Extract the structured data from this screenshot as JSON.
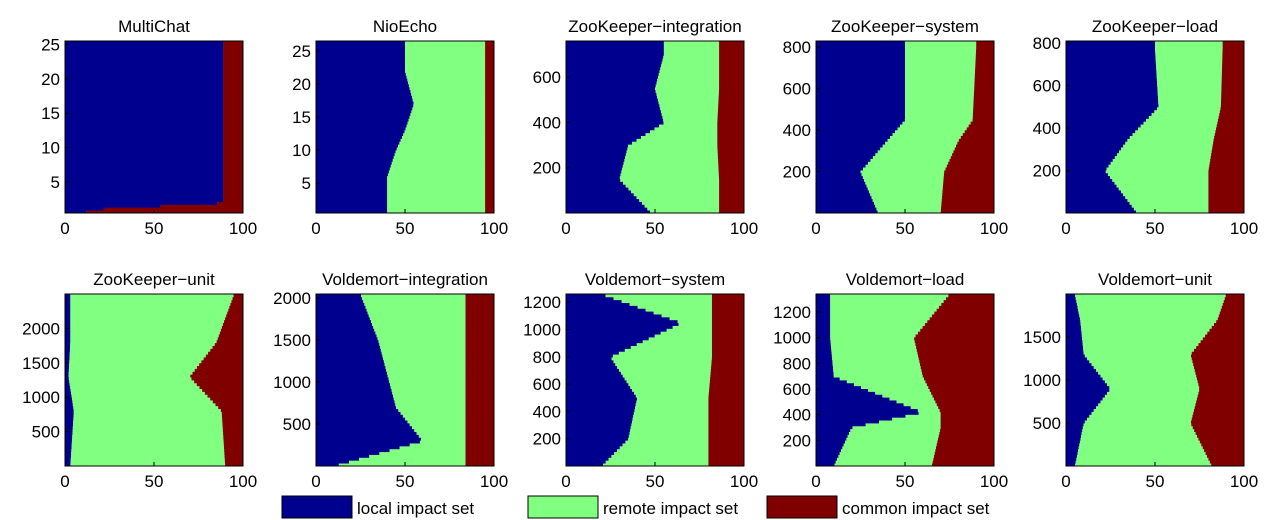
{
  "chart_data": [
    {
      "type": "bar",
      "orientation": "horizontal",
      "stacked": true,
      "title": "MultiChat",
      "xlim": [
        0,
        100
      ],
      "ylim": [
        0.5,
        25.5
      ],
      "xticks": [
        0,
        50,
        100
      ],
      "yticks": [
        5,
        10,
        15,
        20,
        25
      ],
      "profile": [
        [
          1,
          12,
          0
        ],
        [
          2,
          89,
          0
        ],
        [
          3,
          89,
          0
        ],
        [
          4,
          89,
          0
        ],
        [
          5,
          89,
          0
        ],
        [
          6,
          89,
          0
        ],
        [
          7,
          89,
          0
        ],
        [
          8,
          89,
          0
        ],
        [
          9,
          89,
          0
        ],
        [
          10,
          89,
          0
        ],
        [
          11,
          89,
          0
        ],
        [
          12,
          89,
          0
        ],
        [
          13,
          89,
          0
        ],
        [
          14,
          89,
          0
        ],
        [
          15,
          89,
          0
        ],
        [
          16,
          89,
          0
        ],
        [
          17,
          89,
          0
        ],
        [
          18,
          89,
          0
        ],
        [
          19,
          89,
          0
        ],
        [
          20,
          89,
          0
        ],
        [
          21,
          89,
          0
        ],
        [
          22,
          89,
          0
        ],
        [
          23,
          89,
          0
        ],
        [
          24,
          89,
          0
        ],
        [
          25,
          89,
          0
        ]
      ]
    },
    {
      "type": "bar",
      "orientation": "horizontal",
      "stacked": true,
      "title": "NioEcho",
      "xlim": [
        0,
        100
      ],
      "ylim": [
        0.5,
        26.5
      ],
      "xticks": [
        0,
        50,
        100
      ],
      "yticks": [
        5,
        10,
        15,
        20,
        25
      ],
      "profile": [
        [
          1,
          40,
          95
        ],
        [
          6,
          40,
          95
        ],
        [
          10,
          45,
          95
        ],
        [
          13,
          50,
          95
        ],
        [
          17,
          55,
          95
        ],
        [
          22,
          50,
          95
        ],
        [
          26,
          50,
          95
        ]
      ]
    },
    {
      "type": "bar",
      "orientation": "horizontal",
      "stacked": true,
      "title": "ZooKeeper−integration",
      "xlim": [
        0,
        100
      ],
      "ylim": [
        0,
        760
      ],
      "xticks": [
        0,
        50,
        100
      ],
      "yticks": [
        200,
        400,
        600
      ],
      "profile": [
        [
          0,
          48,
          86
        ],
        [
          150,
          30,
          86
        ],
        [
          300,
          35,
          85
        ],
        [
          400,
          55,
          85
        ],
        [
          550,
          50,
          86
        ],
        [
          700,
          55,
          86
        ],
        [
          760,
          55,
          86
        ]
      ]
    },
    {
      "type": "bar",
      "orientation": "horizontal",
      "stacked": true,
      "title": "ZooKeeper−system",
      "xlim": [
        0,
        100
      ],
      "ylim": [
        0,
        830
      ],
      "xticks": [
        0,
        50,
        100
      ],
      "yticks": [
        200,
        400,
        600,
        800
      ],
      "profile": [
        [
          0,
          35,
          70
        ],
        [
          200,
          25,
          72
        ],
        [
          350,
          40,
          80
        ],
        [
          450,
          50,
          88
        ],
        [
          800,
          50,
          90
        ],
        [
          830,
          50,
          90
        ]
      ]
    },
    {
      "type": "bar",
      "orientation": "horizontal",
      "stacked": true,
      "title": "ZooKeeper−load",
      "xlim": [
        0,
        100
      ],
      "ylim": [
        0,
        810
      ],
      "xticks": [
        0,
        50,
        100
      ],
      "yticks": [
        200,
        400,
        600,
        800
      ],
      "profile": [
        [
          0,
          40,
          80
        ],
        [
          200,
          22,
          80
        ],
        [
          350,
          35,
          83
        ],
        [
          500,
          52,
          87
        ],
        [
          780,
          50,
          88
        ],
        [
          810,
          50,
          88
        ]
      ]
    },
    {
      "type": "bar",
      "orientation": "horizontal",
      "stacked": true,
      "title": "ZooKeeper−unit",
      "xlim": [
        0,
        100
      ],
      "ylim": [
        0,
        2500
      ],
      "xticks": [
        0,
        50,
        100
      ],
      "yticks": [
        500,
        1000,
        1500,
        2000
      ],
      "profile": [
        [
          0,
          3,
          90
        ],
        [
          800,
          5,
          88
        ],
        [
          1300,
          2,
          70
        ],
        [
          1800,
          3,
          85
        ],
        [
          2500,
          3,
          95
        ]
      ]
    },
    {
      "type": "bar",
      "orientation": "horizontal",
      "stacked": true,
      "title": "Voldemort−integration",
      "xlim": [
        0,
        100
      ],
      "ylim": [
        0,
        2050
      ],
      "xticks": [
        0,
        50,
        100
      ],
      "yticks": [
        500,
        1000,
        1500,
        2000
      ],
      "profile": [
        [
          0,
          10,
          84
        ],
        [
          300,
          60,
          84
        ],
        [
          700,
          45,
          84
        ],
        [
          1100,
          40,
          84
        ],
        [
          1500,
          35,
          84
        ],
        [
          2050,
          25,
          84
        ]
      ]
    },
    {
      "type": "bar",
      "orientation": "horizontal",
      "stacked": true,
      "title": "Voldemort−system",
      "xlim": [
        0,
        100
      ],
      "ylim": [
        0,
        1260
      ],
      "xticks": [
        0,
        50,
        100
      ],
      "yticks": [
        200,
        400,
        600,
        800,
        1000,
        1200
      ],
      "profile": [
        [
          0,
          20,
          80
        ],
        [
          200,
          35,
          80
        ],
        [
          500,
          40,
          80
        ],
        [
          800,
          25,
          82
        ],
        [
          1050,
          65,
          82
        ],
        [
          1260,
          20,
          82
        ]
      ]
    },
    {
      "type": "bar",
      "orientation": "horizontal",
      "stacked": true,
      "title": "Voldemort−load",
      "xlim": [
        0,
        100
      ],
      "ylim": [
        0,
        1340
      ],
      "xticks": [
        0,
        50,
        100
      ],
      "yticks": [
        200,
        400,
        600,
        800,
        1000,
        1200
      ],
      "profile": [
        [
          0,
          10,
          65
        ],
        [
          300,
          20,
          70
        ],
        [
          420,
          60,
          70
        ],
        [
          700,
          10,
          60
        ],
        [
          1000,
          8,
          55
        ],
        [
          1340,
          8,
          75
        ]
      ]
    },
    {
      "type": "bar",
      "orientation": "horizontal",
      "stacked": true,
      "title": "Voldemort−unit",
      "xlim": [
        0,
        100
      ],
      "ylim": [
        0,
        2000
      ],
      "xticks": [
        0,
        50,
        100
      ],
      "yticks": [
        500,
        1000,
        1500
      ],
      "profile": [
        [
          0,
          5,
          82
        ],
        [
          500,
          10,
          70
        ],
        [
          900,
          25,
          75
        ],
        [
          1300,
          10,
          70
        ],
        [
          1700,
          8,
          85
        ],
        [
          2000,
          5,
          90
        ]
      ]
    }
  ],
  "legend": {
    "items": [
      {
        "label": "local impact set",
        "color": "#00008f"
      },
      {
        "label": "remote impact set",
        "color": "#80ff80"
      },
      {
        "label": "common impact set",
        "color": "#800000"
      }
    ]
  }
}
